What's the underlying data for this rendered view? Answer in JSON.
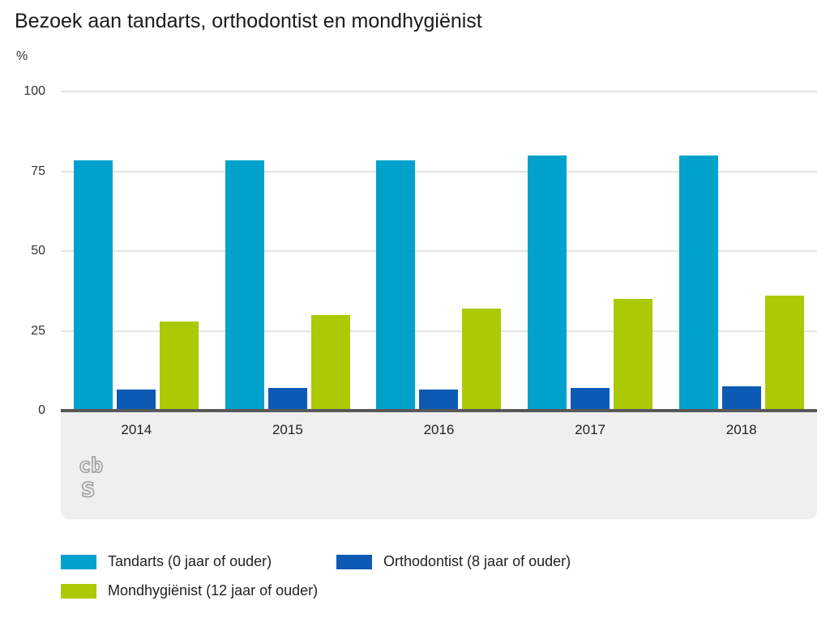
{
  "title": "Bezoek aan tandarts, orthodontist en mondhygiënist",
  "y_axis_unit": "%",
  "chart_data": {
    "type": "bar",
    "title": "Bezoek aan tandarts, orthodontist en mondhygiënist",
    "ylabel": "%",
    "categories": [
      "2014",
      "2015",
      "2016",
      "2017",
      "2018"
    ],
    "series": [
      {
        "name": "Tandarts (0 jaar of ouder)",
        "color": "#00a2cc",
        "values": [
          78.5,
          78.5,
          78.5,
          80,
          80
        ]
      },
      {
        "name": "Orthodontist (8 jaar of ouder)",
        "color": "#0d5ab4",
        "values": [
          6.5,
          7.2,
          6.5,
          7,
          7.7
        ]
      },
      {
        "name": "Mondhygiënist (12 jaar of ouder)",
        "color": "#abc905",
        "values": [
          27.8,
          30,
          32,
          35,
          36
        ]
      }
    ],
    "ylim": [
      0,
      100
    ],
    "yticks": [
      0,
      25,
      50,
      75,
      100
    ],
    "grid": true,
    "legend_position": "bottom"
  },
  "logo": {
    "name": "cbs-logo",
    "letters_top": "cb",
    "letters_bottom": "s",
    "color": "#a0a0a0"
  },
  "colors": {
    "gridline": "#e3e3e3",
    "axis_line": "#58585a",
    "band_background": "#efefef"
  }
}
